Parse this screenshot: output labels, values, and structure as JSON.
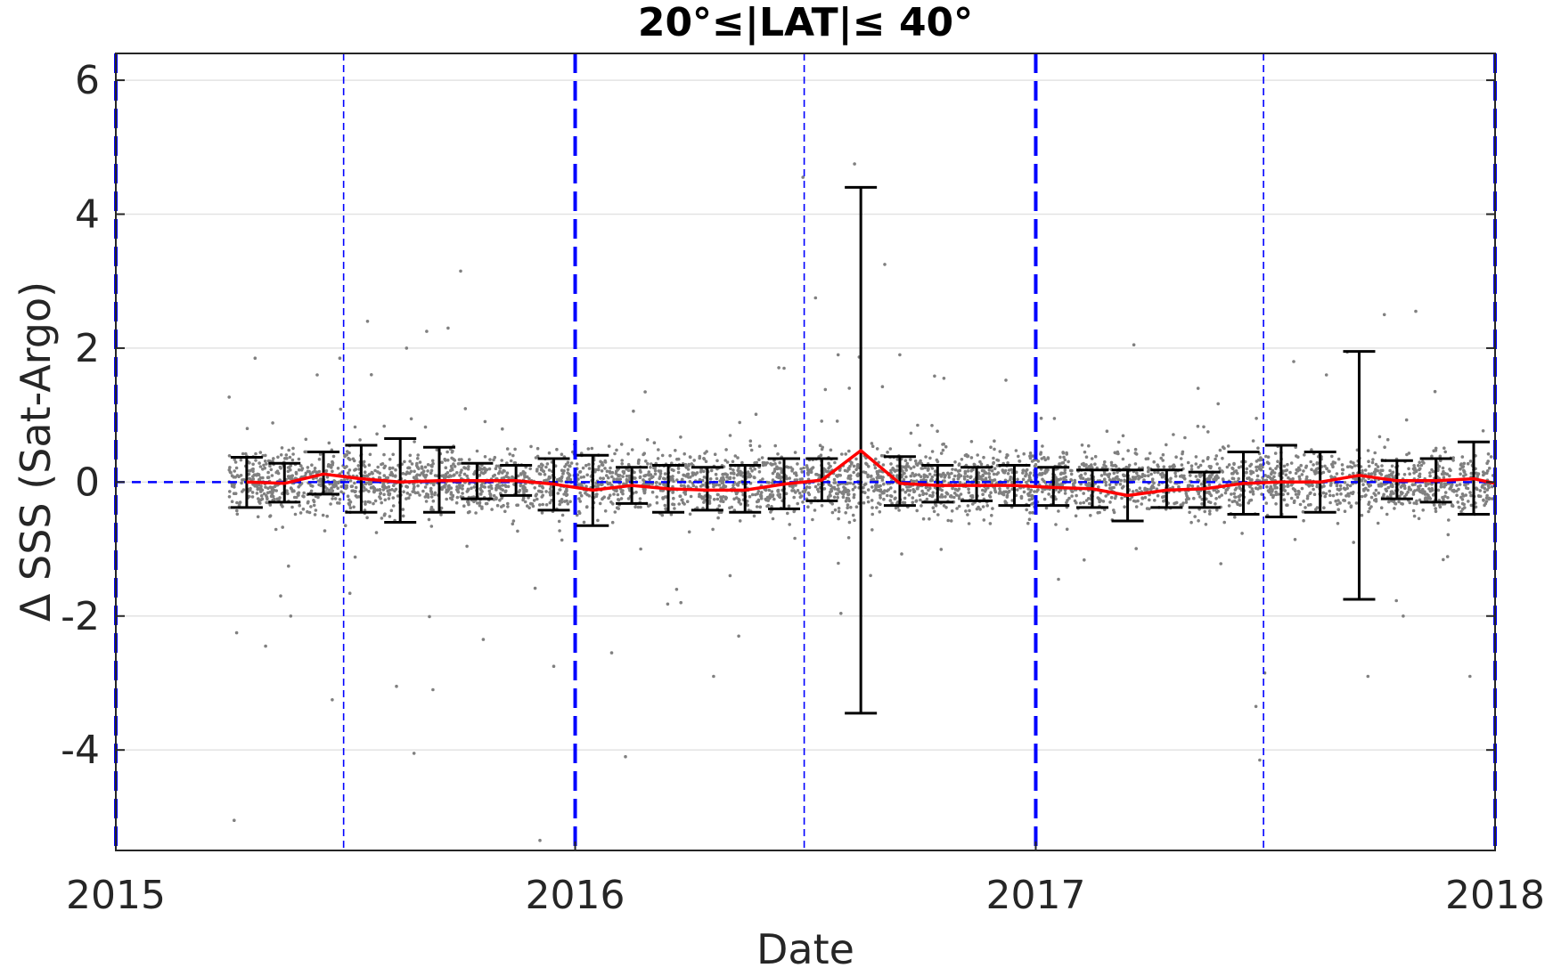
{
  "chart_data": {
    "type": "scatter",
    "title": "20°≤|LAT|≤ 40°",
    "xlabel": "Date",
    "ylabel": "Δ SSS (Sat-Argo)",
    "xlim": [
      "2015-01-01",
      "2018-01-01"
    ],
    "ylim": [
      -5.5,
      6.4
    ],
    "x_ticks": [
      "2015",
      "2016",
      "2017",
      "2018"
    ],
    "y_ticks": [
      -4,
      -2,
      0,
      2,
      4,
      6
    ],
    "y_tick_labels": [
      "-4",
      "-2",
      "0",
      "2",
      "4",
      "6"
    ],
    "grid": "horizontal",
    "reference_line": {
      "y": 0,
      "style": "dashed",
      "color": "#0000ff"
    },
    "vertical_lines": [
      {
        "x": "2015-01-01",
        "style": "thick-dashed"
      },
      {
        "x": "2015-07-01",
        "style": "thin-dashed"
      },
      {
        "x": "2016-01-01",
        "style": "thick-dashed"
      },
      {
        "x": "2016-07-01",
        "style": "thin-dashed"
      },
      {
        "x": "2017-01-01",
        "style": "thick-dashed"
      },
      {
        "x": "2017-07-01",
        "style": "thin-dashed"
      },
      {
        "x": "2018-01-01",
        "style": "thick-dashed"
      }
    ],
    "series": [
      {
        "kind": "scatter",
        "color": "#808080",
        "x_range": [
          "2015-04-01",
          "2018-01-01"
        ],
        "y_center": 0,
        "y_spread_std": 0.22,
        "outliers": [
          {
            "x": "2015-04-05",
            "y": -5.05
          },
          {
            "x": "2015-04-07",
            "y": -2.25
          },
          {
            "x": "2015-04-30",
            "y": -2.45
          },
          {
            "x": "2015-05-12",
            "y": -1.7
          },
          {
            "x": "2015-05-20",
            "y": -2.0
          },
          {
            "x": "2015-06-10",
            "y": 1.6
          },
          {
            "x": "2015-06-22",
            "y": -3.25
          },
          {
            "x": "2015-06-28",
            "y": 1.85
          },
          {
            "x": "2015-07-20",
            "y": 2.4
          },
          {
            "x": "2015-08-12",
            "y": -3.05
          },
          {
            "x": "2015-08-20",
            "y": 2.0
          },
          {
            "x": "2015-08-26",
            "y": -4.05
          },
          {
            "x": "2015-09-05",
            "y": 2.25
          },
          {
            "x": "2015-09-10",
            "y": -3.1
          },
          {
            "x": "2015-09-22",
            "y": 2.3
          },
          {
            "x": "2015-10-02",
            "y": 3.15
          },
          {
            "x": "2015-10-20",
            "y": -2.35
          },
          {
            "x": "2015-12-04",
            "y": -5.35
          },
          {
            "x": "2015-12-15",
            "y": -2.75
          },
          {
            "x": "2016-01-30",
            "y": -2.55
          },
          {
            "x": "2016-02-10",
            "y": -4.1
          },
          {
            "x": "2016-03-25",
            "y": -1.8
          },
          {
            "x": "2016-04-20",
            "y": -2.9
          },
          {
            "x": "2016-05-10",
            "y": -2.3
          },
          {
            "x": "2016-06-15",
            "y": 1.7
          },
          {
            "x": "2016-06-30",
            "y": 4.55
          },
          {
            "x": "2016-07-10",
            "y": 2.75
          },
          {
            "x": "2016-07-28",
            "y": 1.9
          },
          {
            "x": "2016-08-10",
            "y": 4.75
          },
          {
            "x": "2016-09-03",
            "y": 3.25
          },
          {
            "x": "2016-09-15",
            "y": 1.9
          },
          {
            "x": "2016-10-20",
            "y": 1.55
          },
          {
            "x": "2017-03-20",
            "y": 2.05
          },
          {
            "x": "2017-05-10",
            "y": 1.4
          },
          {
            "x": "2017-06-25",
            "y": -3.35
          },
          {
            "x": "2017-06-28",
            "y": -4.15
          },
          {
            "x": "2017-07-02",
            "y": -2.85
          },
          {
            "x": "2017-07-25",
            "y": 1.8
          },
          {
            "x": "2017-08-20",
            "y": 1.6
          },
          {
            "x": "2017-09-22",
            "y": -2.9
          },
          {
            "x": "2017-10-05",
            "y": 2.5
          },
          {
            "x": "2017-10-20",
            "y": -2.0
          },
          {
            "x": "2017-10-30",
            "y": 2.55
          },
          {
            "x": "2017-12-12",
            "y": -2.9
          }
        ]
      },
      {
        "kind": "line",
        "color": "#ff0000",
        "x": [
          "2015-04-15",
          "2015-05-15",
          "2015-06-15",
          "2015-07-15",
          "2015-08-15",
          "2015-09-15",
          "2015-10-15",
          "2015-11-15",
          "2015-12-15",
          "2016-01-15",
          "2016-02-15",
          "2016-03-15",
          "2016-04-15",
          "2016-05-15",
          "2016-06-15",
          "2016-07-15",
          "2016-08-15",
          "2016-09-15",
          "2016-10-15",
          "2016-11-15",
          "2016-12-15",
          "2017-01-15",
          "2017-02-15",
          "2017-03-15",
          "2017-04-15",
          "2017-05-15",
          "2017-06-15",
          "2017-07-15",
          "2017-08-15",
          "2017-09-15",
          "2017-10-15",
          "2017-11-15",
          "2017-12-15",
          "2018-01-01"
        ],
        "y": [
          0.0,
          -0.02,
          0.12,
          0.05,
          0.0,
          0.02,
          0.02,
          0.02,
          -0.03,
          -0.12,
          -0.05,
          -0.1,
          -0.12,
          -0.12,
          -0.03,
          0.03,
          0.47,
          -0.02,
          -0.05,
          -0.05,
          -0.05,
          -0.08,
          -0.1,
          -0.2,
          -0.12,
          -0.1,
          -0.02,
          0.0,
          0.0,
          0.1,
          0.02,
          0.02,
          0.05,
          -0.02
        ]
      },
      {
        "kind": "errorbar",
        "color": "#000000",
        "x": [
          "2015-04-15",
          "2015-05-15",
          "2015-06-15",
          "2015-07-15",
          "2015-08-15",
          "2015-09-15",
          "2015-10-15",
          "2015-11-15",
          "2015-12-15",
          "2016-01-15",
          "2016-02-15",
          "2016-03-15",
          "2016-04-15",
          "2016-05-15",
          "2016-06-15",
          "2016-07-15",
          "2016-08-15",
          "2016-09-15",
          "2016-10-15",
          "2016-11-15",
          "2016-12-15",
          "2017-01-15",
          "2017-02-15",
          "2017-03-15",
          "2017-04-15",
          "2017-05-15",
          "2017-06-15",
          "2017-07-15",
          "2017-08-15",
          "2017-09-15",
          "2017-10-15",
          "2017-11-15",
          "2017-12-15"
        ],
        "lower": [
          -0.38,
          -0.3,
          -0.18,
          -0.45,
          -0.6,
          -0.45,
          -0.25,
          -0.2,
          -0.42,
          -0.65,
          -0.32,
          -0.45,
          -0.42,
          -0.45,
          -0.4,
          -0.28,
          -3.45,
          -0.35,
          -0.3,
          -0.28,
          -0.35,
          -0.35,
          -0.38,
          -0.58,
          -0.38,
          -0.38,
          -0.48,
          -0.52,
          -0.45,
          -1.75,
          -0.25,
          -0.3,
          -0.48
        ],
        "upper": [
          0.37,
          0.28,
          0.45,
          0.55,
          0.65,
          0.52,
          0.28,
          0.25,
          0.35,
          0.4,
          0.22,
          0.25,
          0.22,
          0.25,
          0.35,
          0.35,
          4.4,
          0.38,
          0.25,
          0.22,
          0.25,
          0.22,
          0.18,
          0.18,
          0.18,
          0.15,
          0.45,
          0.55,
          0.45,
          1.95,
          0.32,
          0.35,
          0.6
        ]
      }
    ]
  }
}
